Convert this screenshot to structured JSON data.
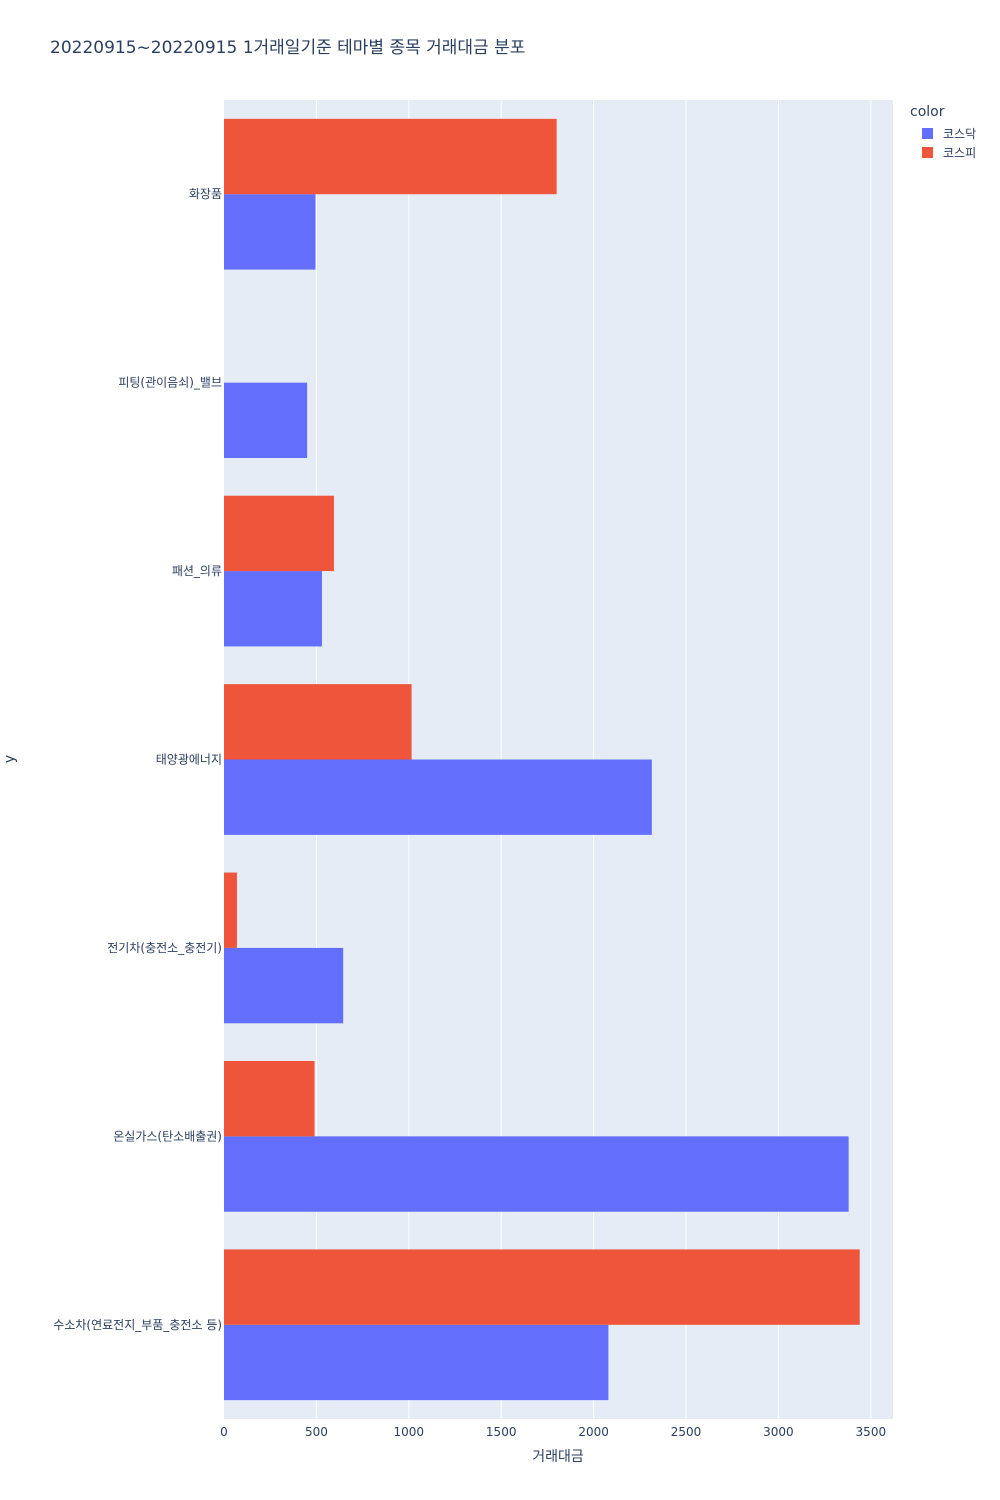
{
  "title": "20220915~20220915 1거래일기준 테마별 종목 거래대금 분포",
  "legend": {
    "title": "color",
    "items": [
      {
        "label": "코스닥",
        "color": "#636efa"
      },
      {
        "label": "코스피",
        "color": "#ef553b"
      }
    ]
  },
  "chart_data": {
    "type": "bar",
    "orientation": "horizontal",
    "barmode": "group",
    "title": "20220915~20220915 1거래일기준 테마별 종목 거래대금 분포",
    "xlabel": "거래대금",
    "ylabel": "y",
    "xlim": [
      0,
      3620
    ],
    "xticks": [
      0,
      500,
      1000,
      1500,
      2000,
      2500,
      3000,
      3500
    ],
    "xtick_labels": [
      "0",
      "500",
      "1000",
      "1500",
      "2000",
      "2500",
      "3000",
      "3500"
    ],
    "grid": true,
    "legend_position": "top-right",
    "categories": [
      "화장품",
      "피팅(관이음쇠)_밸브",
      "패션_의류",
      "태양광에너지",
      "전기차(충전소_충전기)",
      "온실가스(탄소배출권)",
      "수소차(연료전지_부품_충전소 등)"
    ],
    "series": [
      {
        "name": "코스닥",
        "color": "#636efa",
        "values": [
          495,
          450,
          530,
          2315,
          645,
          3380,
          2080
        ]
      },
      {
        "name": "코스피",
        "color": "#ef553b",
        "values": [
          1800,
          null,
          595,
          1015,
          70,
          490,
          3440
        ]
      }
    ]
  }
}
